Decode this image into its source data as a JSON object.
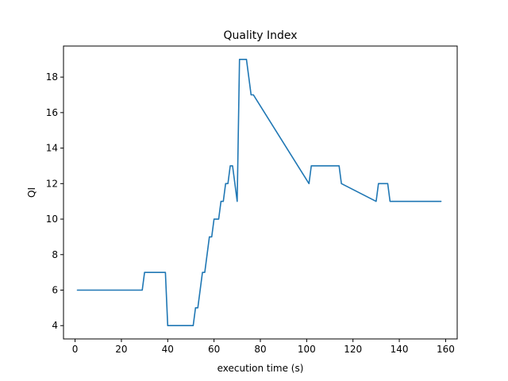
{
  "chart_data": {
    "type": "line",
    "title": "Quality Index",
    "xlabel": "execution time (s)",
    "ylabel": "QI",
    "xlim": [
      -5,
      165
    ],
    "ylim": [
      3.25,
      19.75
    ],
    "xticks": [
      0,
      20,
      40,
      60,
      80,
      100,
      120,
      140,
      160
    ],
    "yticks": [
      4,
      6,
      8,
      10,
      12,
      14,
      16,
      18
    ],
    "grid": false,
    "colors": {
      "line": "#1f77b4",
      "axes": "#000000",
      "background": "#ffffff"
    },
    "series": [
      {
        "name": "QI",
        "x": [
          1,
          29,
          30,
          38,
          39,
          40,
          51,
          52,
          53,
          54,
          55,
          56,
          57,
          58,
          59,
          60,
          61,
          62,
          63,
          64,
          65,
          66,
          67,
          68,
          70,
          71,
          72,
          74,
          75,
          76,
          77,
          101,
          102,
          113,
          114,
          115,
          130,
          131,
          135,
          136,
          158
        ],
        "y": [
          6,
          6,
          7,
          7,
          7,
          4,
          4,
          5,
          5,
          6,
          7,
          7,
          8,
          9,
          9,
          10,
          10,
          10,
          11,
          11,
          12,
          12,
          13,
          13,
          11,
          19,
          19,
          19,
          18,
          17,
          17,
          12,
          13,
          13,
          13,
          12,
          11,
          12,
          12,
          11,
          11
        ]
      }
    ]
  }
}
